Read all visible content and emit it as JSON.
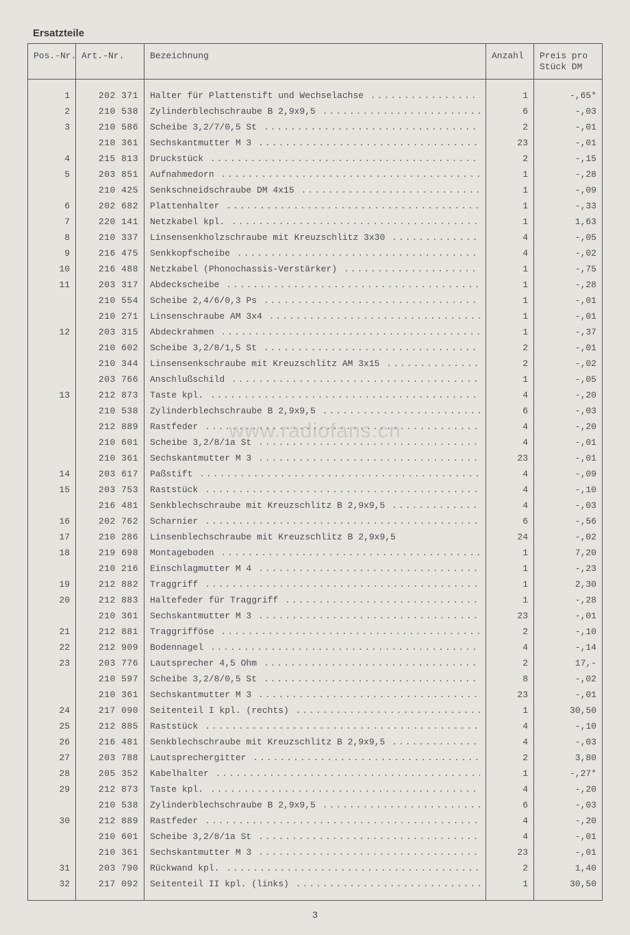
{
  "heading": "Ersatzteile",
  "columns": {
    "pos": "Pos.-Nr.",
    "art": "Art.-Nr.",
    "desc": "Bezeichnung",
    "qty": "Anzahl",
    "price_l1": "Preis pro",
    "price_l2": "Stück DM"
  },
  "watermark": "www.radiofans.cn",
  "page_number": "3",
  "rows": [
    {
      "pos": "1",
      "art": "202 371",
      "desc": "Halter für Plattenstift und Wechselachse",
      "qty": "1",
      "price": "-,65*"
    },
    {
      "pos": "2",
      "art": "210 538",
      "desc": "Zylinderblechschraube B 2,9x9,5",
      "qty": "6",
      "price": "-,03"
    },
    {
      "pos": "3",
      "art": "210 586",
      "desc": "Scheibe 3,2/7/0,5 St",
      "qty": "2",
      "price": "-,01"
    },
    {
      "pos": "",
      "art": "210 361",
      "desc": "Sechskantmutter M 3",
      "qty": "23",
      "price": "-,01"
    },
    {
      "pos": "4",
      "art": "215 813",
      "desc": "Druckstück",
      "qty": "2",
      "price": "-,15"
    },
    {
      "pos": "5",
      "art": "203 851",
      "desc": "Aufnahmedorn",
      "qty": "1",
      "price": "-,28"
    },
    {
      "pos": "",
      "art": "210 425",
      "desc": "Senkschneidschraube DM 4x15",
      "qty": "1",
      "price": "-,09"
    },
    {
      "pos": "6",
      "art": "202 682",
      "desc": "Plattenhalter",
      "qty": "1",
      "price": "-,33"
    },
    {
      "pos": "7",
      "art": "220 141",
      "desc": "Netzkabel kpl.",
      "qty": "1",
      "price": "1,63"
    },
    {
      "pos": "8",
      "art": "210 337",
      "desc": "Linsensenkholzschraube mit Kreuzschlitz 3x30",
      "qty": "4",
      "price": "-,05"
    },
    {
      "pos": "9",
      "art": "216 475",
      "desc": "Senkkopfscheibe",
      "qty": "4",
      "price": "-,02"
    },
    {
      "pos": "10",
      "art": "216 488",
      "desc": "Netzkabel (Phonochassis-Verstärker)",
      "qty": "1",
      "price": "-,75"
    },
    {
      "pos": "11",
      "art": "203 317",
      "desc": "Abdeckscheibe",
      "qty": "1",
      "price": "-,28"
    },
    {
      "pos": "",
      "art": "210 554",
      "desc": "Scheibe 2,4/6/0,3 Ps",
      "qty": "1",
      "price": "-,01"
    },
    {
      "pos": "",
      "art": "210 271",
      "desc": "Linsenschraube AM 3x4",
      "qty": "1",
      "price": "-,01"
    },
    {
      "pos": "12",
      "art": "203 315",
      "desc": "Abdeckrahmen",
      "qty": "1",
      "price": "-,37"
    },
    {
      "pos": "",
      "art": "210 602",
      "desc": "Scheibe 3,2/8/1,5 St",
      "qty": "2",
      "price": "-,01"
    },
    {
      "pos": "",
      "art": "210 344",
      "desc": "Linsensenkschraube mit Kreuzschlitz AM 3x15",
      "qty": "2",
      "price": "-,02"
    },
    {
      "pos": "",
      "art": "203 766",
      "desc": "Anschlußschild",
      "qty": "1",
      "price": "-,05"
    },
    {
      "pos": "13",
      "art": "212 873",
      "desc": "Taste kpl.",
      "qty": "4",
      "price": "-,20"
    },
    {
      "pos": "",
      "art": "210 538",
      "desc": "Zylinderblechschraube B 2,9x9,5",
      "qty": "6",
      "price": "-,03"
    },
    {
      "pos": "",
      "art": "212 889",
      "desc": "Rastfeder",
      "qty": "4",
      "price": "-,20"
    },
    {
      "pos": "",
      "art": "210 601",
      "desc": "Scheibe 3,2/8/1a St",
      "qty": "4",
      "price": "-,01"
    },
    {
      "pos": "",
      "art": "210 361",
      "desc": "Sechskantmutter M 3",
      "qty": "23",
      "price": "-,01"
    },
    {
      "pos": "14",
      "art": "203 617",
      "desc": "Paßstift",
      "qty": "4",
      "price": "-,09"
    },
    {
      "pos": "15",
      "art": "203 753",
      "desc": "Raststück",
      "qty": "4",
      "price": "-,10"
    },
    {
      "pos": "",
      "art": "216 481",
      "desc": "Senkblechschraube mit Kreuzschlitz B 2,9x9,5",
      "qty": "4",
      "price": "-,03"
    },
    {
      "pos": "16",
      "art": "202 762",
      "desc": "Scharnier",
      "qty": "6",
      "price": "-,56"
    },
    {
      "pos": "17",
      "art": "210 286",
      "desc": "Linsenblechschraube mit Kreuzschlitz B 2,9x9,5",
      "qty": "24",
      "price": "-,02",
      "noleader": true
    },
    {
      "pos": "18",
      "art": "219 698",
      "desc": "Montageboden",
      "qty": "1",
      "price": "7,20"
    },
    {
      "pos": "",
      "art": "210 216",
      "desc": "Einschlagmutter M 4",
      "qty": "1",
      "price": "-,23"
    },
    {
      "pos": "19",
      "art": "212 882",
      "desc": "Traggriff",
      "qty": "1",
      "price": "2,30"
    },
    {
      "pos": "20",
      "art": "212 883",
      "desc": "Haltefeder für Traggriff",
      "qty": "1",
      "price": "-,28"
    },
    {
      "pos": "",
      "art": "210 361",
      "desc": "Sechskantmutter M 3",
      "qty": "23",
      "price": "-,01"
    },
    {
      "pos": "21",
      "art": "212 881",
      "desc": "Traggrifföse",
      "qty": "2",
      "price": "-,10"
    },
    {
      "pos": "22",
      "art": "212 909",
      "desc": "Bodennagel",
      "qty": "4",
      "price": "-,14"
    },
    {
      "pos": "23",
      "art": "203 776",
      "desc": "Lautsprecher 4,5 Ohm",
      "qty": "2",
      "price": "17,-"
    },
    {
      "pos": "",
      "art": "210 597",
      "desc": "Scheibe 3,2/8/0,5 St",
      "qty": "8",
      "price": "-,02"
    },
    {
      "pos": "",
      "art": "210 361",
      "desc": "Sechskantmutter M 3",
      "qty": "23",
      "price": "-,01"
    },
    {
      "pos": "24",
      "art": "217 090",
      "desc": "Seitenteil I kpl. (rechts)",
      "qty": "1",
      "price": "30,50"
    },
    {
      "pos": "25",
      "art": "212 885",
      "desc": "Raststück",
      "qty": "4",
      "price": "-,10"
    },
    {
      "pos": "26",
      "art": "216 481",
      "desc": "Senkblechschraube mit Kreuzschlitz B 2,9x9,5",
      "qty": "4",
      "price": "-,03"
    },
    {
      "pos": "27",
      "art": "203 788",
      "desc": "Lautsprechergitter",
      "qty": "2",
      "price": "3,80"
    },
    {
      "pos": "28",
      "art": "205 352",
      "desc": "Kabelhalter",
      "qty": "1",
      "price": "-,27*"
    },
    {
      "pos": "29",
      "art": "212 873",
      "desc": "Taste kpl.",
      "qty": "4",
      "price": "-,20"
    },
    {
      "pos": "",
      "art": "210 538",
      "desc": "Zylinderblechschraube B 2,9x9,5",
      "qty": "6",
      "price": "-,03"
    },
    {
      "pos": "30",
      "art": "212 889",
      "desc": "Rastfeder",
      "qty": "4",
      "price": "-,20"
    },
    {
      "pos": "",
      "art": "210 601",
      "desc": "Scheibe 3,2/8/1a St",
      "qty": "4",
      "price": "-,01"
    },
    {
      "pos": "",
      "art": "210 361",
      "desc": "Sechskantmutter M 3",
      "qty": "23",
      "price": "-,01"
    },
    {
      "pos": "31",
      "art": "203 790",
      "desc": "Rückwand kpl.",
      "qty": "2",
      "price": "1,40"
    },
    {
      "pos": "32",
      "art": "217 092",
      "desc": "Seitenteil II kpl. (links)",
      "qty": "1",
      "price": "30,50"
    }
  ]
}
